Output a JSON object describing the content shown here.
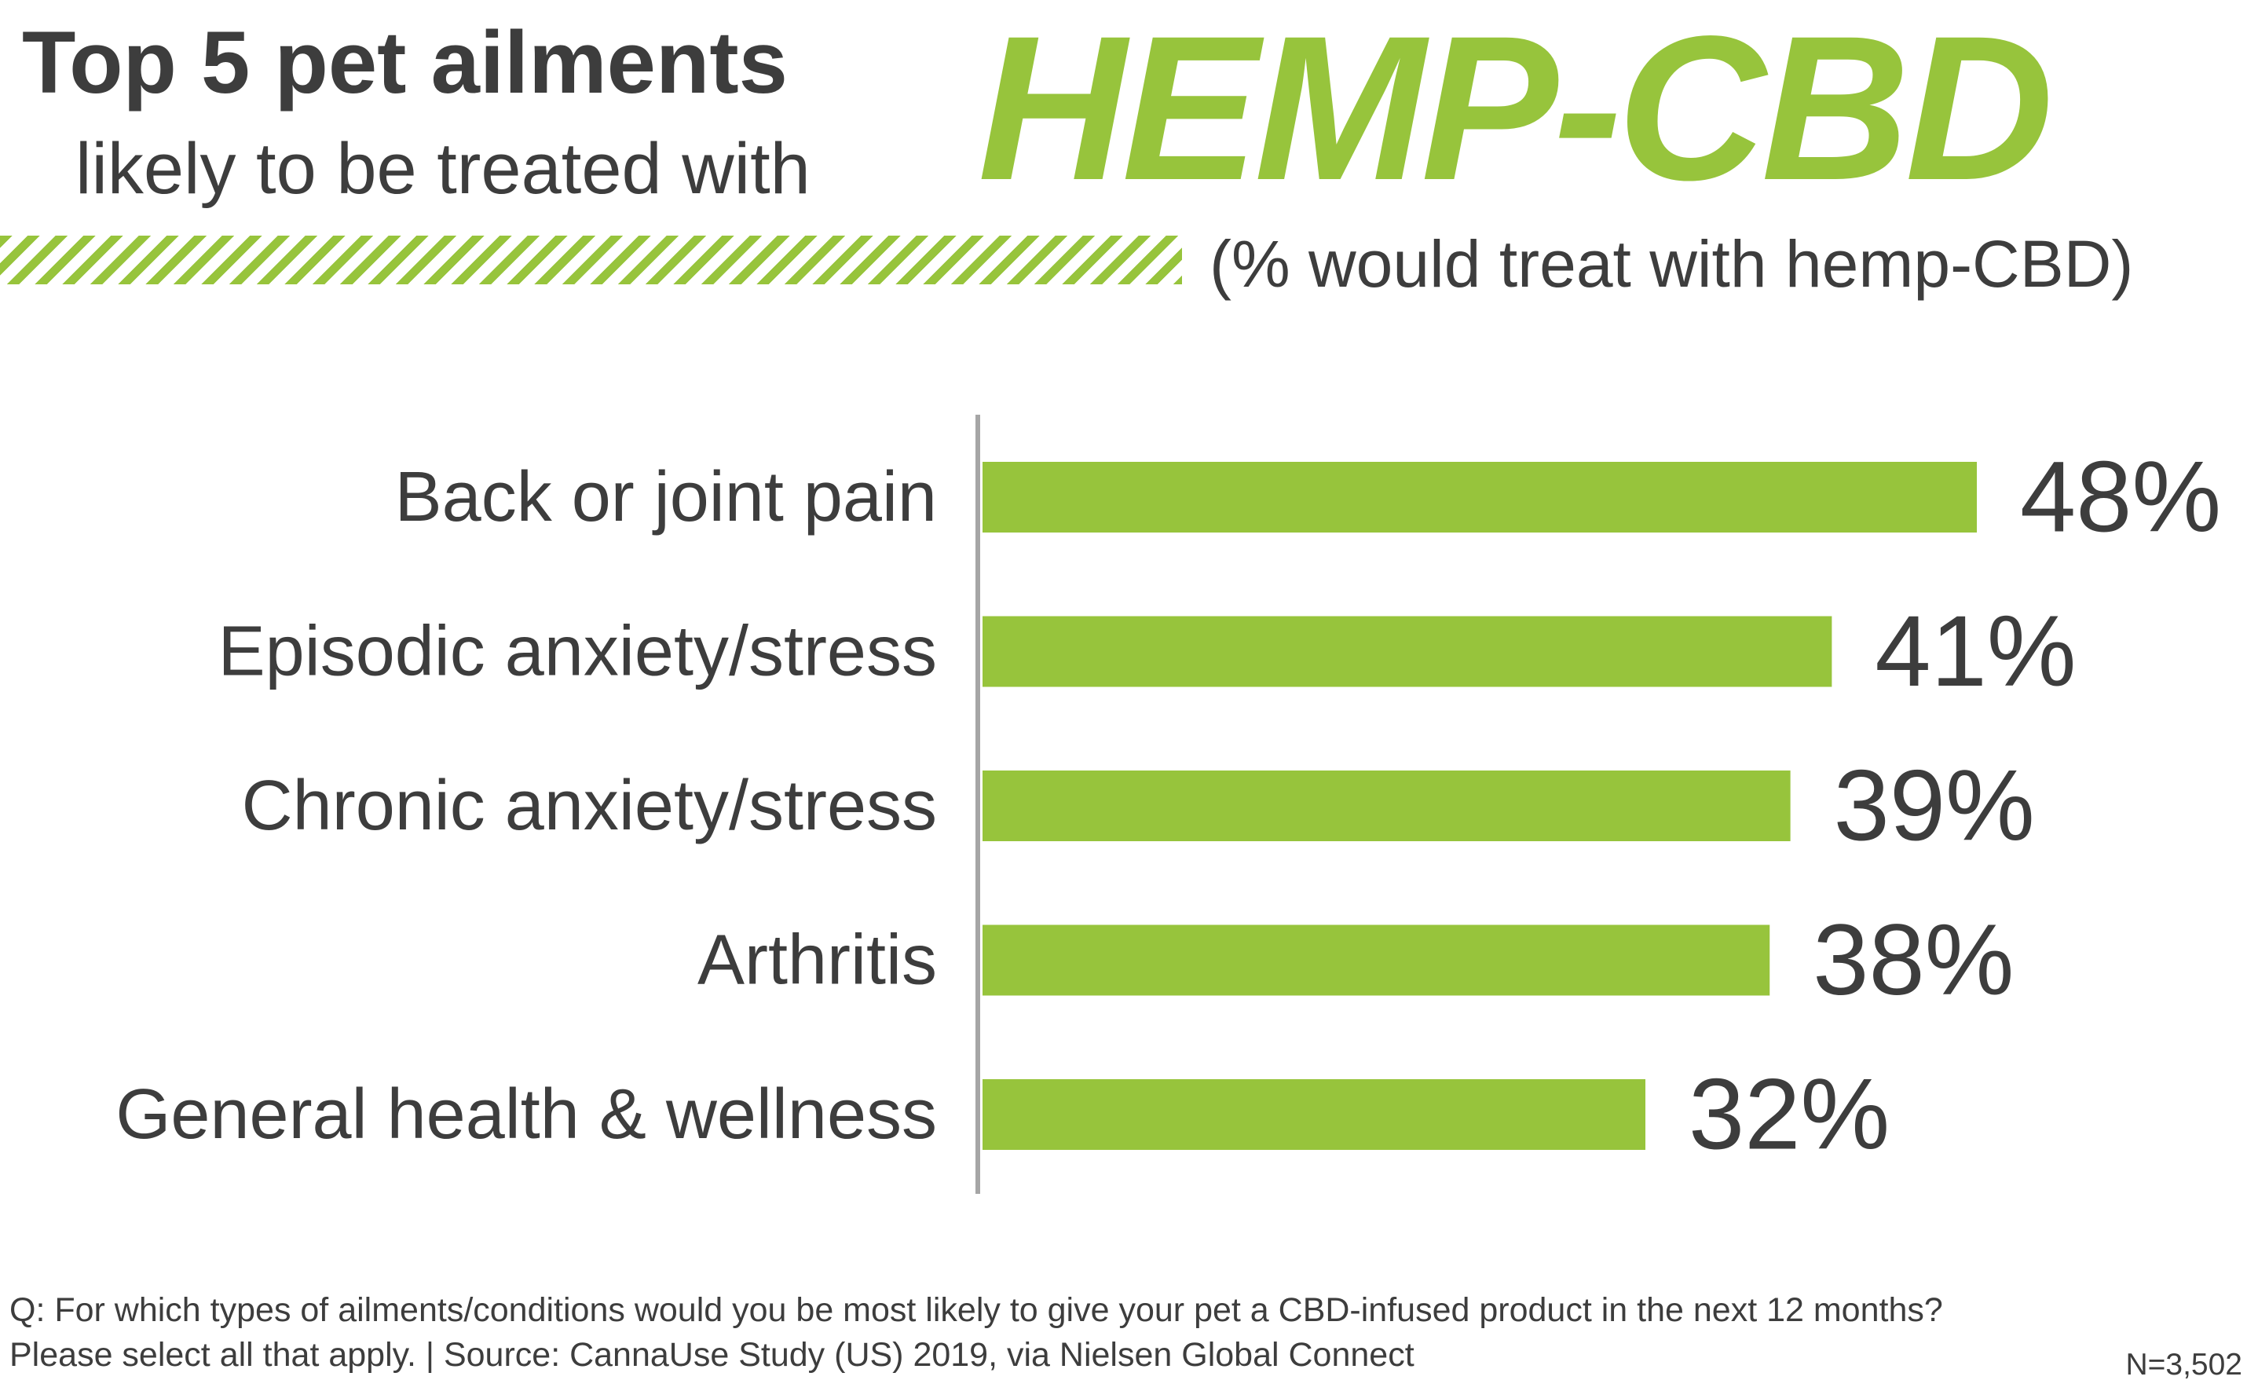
{
  "header": {
    "title_line1": "Top 5 pet ailments",
    "title_line2": "likely to be treated with",
    "brand": "HEMP-CBD",
    "subtitle": "(% would treat with hemp-CBD)"
  },
  "chart_data": {
    "type": "bar",
    "orientation": "horizontal",
    "title": "Top 5 pet ailments likely to be treated with HEMP-CBD",
    "subtitle": "(% would treat with hemp-CBD)",
    "categories": [
      "Back or joint pain",
      "Episodic anxiety/stress",
      "Chronic anxiety/stress",
      "Arthritis",
      "General health & wellness"
    ],
    "values": [
      48,
      41,
      39,
      38,
      32
    ],
    "value_labels": [
      "48%",
      "41%",
      "39%",
      "38%",
      "32%"
    ],
    "unit": "%",
    "xlim": [
      0,
      48
    ],
    "grid": false,
    "legend": "none",
    "bar_color": "#97c43c",
    "axis_color": "#a6a6a6"
  },
  "footer": {
    "question": "Q: For which types of ailments/conditions would you be most likely to give your pet a CBD-infused product in the next 12 months?",
    "source": "Please select all that apply. | Source: CannaUse Study (US) 2019, via Nielsen Global Connect",
    "sample": "N=3,502"
  }
}
